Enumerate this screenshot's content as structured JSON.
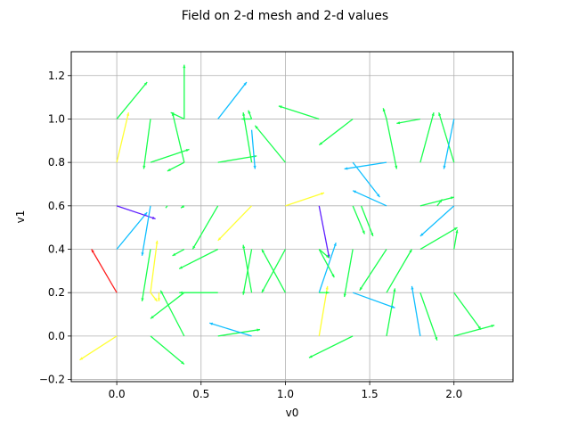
{
  "chart_data": {
    "type": "quiver",
    "title": "Field on 2-d mesh and 2-d values",
    "xlabel": "v0",
    "ylabel": "v1",
    "xlim": [
      -0.27,
      2.35
    ],
    "ylim": [
      -0.21,
      1.31
    ],
    "xticks": [
      "0.0",
      "0.5",
      "1.0",
      "1.5",
      "2.0"
    ],
    "xtick_values": [
      0.0,
      0.5,
      1.0,
      1.5,
      2.0
    ],
    "yticks": [
      "−0.2",
      "0.0",
      "0.2",
      "0.4",
      "0.6",
      "0.8",
      "1.0",
      "1.2"
    ],
    "ytick_values": [
      -0.2,
      0.0,
      0.2,
      0.4,
      0.6,
      0.8,
      1.0,
      1.2
    ],
    "grid": true,
    "arrows": [
      {
        "x": 0.0,
        "y": 0.0,
        "u": -0.22,
        "v": -0.11,
        "color": "#ffff33"
      },
      {
        "x": 0.2,
        "y": 0.0,
        "u": 0.2,
        "v": -0.13,
        "color": "#19ff4e"
      },
      {
        "x": 0.4,
        "y": 0.0,
        "u": -0.14,
        "v": 0.21,
        "color": "#19ff4e"
      },
      {
        "x": 0.6,
        "y": 0.0,
        "u": 0.25,
        "v": 0.03,
        "color": "#19ff4e"
      },
      {
        "x": 0.8,
        "y": 0.0,
        "u": -0.25,
        "v": 0.06,
        "color": "#10bfff"
      },
      {
        "x": 1.0,
        "y": 0.0,
        "u": 0.0,
        "v": 0.0,
        "color": "#19ff4e"
      },
      {
        "x": 1.2,
        "y": 0.0,
        "u": 0.05,
        "v": 0.23,
        "color": "#ffff33"
      },
      {
        "x": 1.4,
        "y": 0.0,
        "u": -0.26,
        "v": -0.1,
        "color": "#19ff4e"
      },
      {
        "x": 1.6,
        "y": 0.0,
        "u": 0.05,
        "v": 0.22,
        "color": "#19ff4e"
      },
      {
        "x": 1.8,
        "y": 0.0,
        "u": -0.05,
        "v": 0.23,
        "color": "#10bfff"
      },
      {
        "x": 2.0,
        "y": 0.0,
        "u": 0.24,
        "v": 0.05,
        "color": "#19ff4e"
      },
      {
        "x": 0.0,
        "y": 0.2,
        "u": -0.15,
        "v": 0.2,
        "color": "#ff2020"
      },
      {
        "x": 0.2,
        "y": 0.2,
        "u": 0.04,
        "v": 0.24,
        "color": "#ffff33"
      },
      {
        "x": 0.4,
        "y": 0.2,
        "u": -0.2,
        "v": -0.12,
        "color": "#19ff4e"
      },
      {
        "x": 0.6,
        "y": 0.2,
        "u": -0.23,
        "v": 0.0,
        "color": "#19ff4e"
      },
      {
        "x": 0.8,
        "y": 0.2,
        "u": -0.05,
        "v": 0.22,
        "color": "#19ff4e"
      },
      {
        "x": 1.0,
        "y": 0.2,
        "u": -0.14,
        "v": 0.2,
        "color": "#19ff4e"
      },
      {
        "x": 1.2,
        "y": 0.2,
        "u": 0.1,
        "v": 0.23,
        "color": "#10bfff"
      },
      {
        "x": 1.4,
        "y": 0.2,
        "u": 0.25,
        "v": -0.07,
        "color": "#10bfff"
      },
      {
        "x": 1.6,
        "y": 0.2,
        "u": 0.15,
        "v": 0.2,
        "color": "#19ff4e"
      },
      {
        "x": 1.8,
        "y": 0.2,
        "u": 0.1,
        "v": -0.22,
        "color": "#19ff4e"
      },
      {
        "x": 2.0,
        "y": 0.2,
        "u": 0.16,
        "v": -0.17,
        "color": "#19ff4e"
      },
      {
        "x": 0.0,
        "y": 0.4,
        "u": 0.18,
        "v": 0.17,
        "color": "#10bfff"
      },
      {
        "x": 0.2,
        "y": 0.4,
        "u": -0.05,
        "v": -0.24,
        "color": "#19ff4e"
      },
      {
        "x": 0.4,
        "y": 0.4,
        "u": -0.07,
        "v": -0.03,
        "color": "#19ff4e"
      },
      {
        "x": 0.6,
        "y": 0.4,
        "u": -0.23,
        "v": -0.09,
        "color": "#19ff4e"
      },
      {
        "x": 0.8,
        "y": 0.4,
        "u": -0.05,
        "v": -0.21,
        "color": "#19ff4e"
      },
      {
        "x": 1.0,
        "y": 0.4,
        "u": -0.14,
        "v": -0.2,
        "color": "#19ff4e"
      },
      {
        "x": 1.2,
        "y": 0.4,
        "u": 0.09,
        "v": -0.13,
        "color": "#19ff4e"
      },
      {
        "x": 1.4,
        "y": 0.4,
        "u": -0.05,
        "v": -0.22,
        "color": "#19ff4e"
      },
      {
        "x": 1.6,
        "y": 0.4,
        "u": -0.16,
        "v": -0.19,
        "color": "#19ff4e"
      },
      {
        "x": 1.8,
        "y": 0.4,
        "u": 0.22,
        "v": 0.1,
        "color": "#19ff4e"
      },
      {
        "x": 2.0,
        "y": 0.4,
        "u": 0.0,
        "v": 0.0,
        "color": "#19ff4e"
      },
      {
        "x": 0.0,
        "y": 0.6,
        "u": 0.23,
        "v": -0.06,
        "color": "#5f1fff"
      },
      {
        "x": 0.2,
        "y": 0.6,
        "u": -0.05,
        "v": -0.23,
        "color": "#10bfff"
      },
      {
        "x": 0.4,
        "y": 0.6,
        "u": 0.0,
        "v": 0.0,
        "color": "#19ff4e"
      },
      {
        "x": 0.6,
        "y": 0.6,
        "u": -0.15,
        "v": -0.2,
        "color": "#19ff4e"
      },
      {
        "x": 0.8,
        "y": 0.6,
        "u": -0.2,
        "v": -0.16,
        "color": "#ffff33"
      },
      {
        "x": 1.0,
        "y": 0.6,
        "u": 0.23,
        "v": 0.06,
        "color": "#ffff33"
      },
      {
        "x": 1.2,
        "y": 0.6,
        "u": 0.06,
        "v": -0.24,
        "color": "#5f1fff"
      },
      {
        "x": 1.4,
        "y": 0.6,
        "u": 0.07,
        "v": -0.13,
        "color": "#19ff4e"
      },
      {
        "x": 1.6,
        "y": 0.6,
        "u": -0.2,
        "v": 0.07,
        "color": "#10bfff"
      },
      {
        "x": 1.8,
        "y": 0.6,
        "u": 0.2,
        "v": 0.04,
        "color": "#19ff4e"
      },
      {
        "x": 2.0,
        "y": 0.6,
        "u": -0.2,
        "v": -0.14,
        "color": "#10bfff"
      },
      {
        "x": 0.0,
        "y": 0.8,
        "u": 0.0,
        "v": 0.0,
        "color": "#19ff4e"
      },
      {
        "x": 0.2,
        "y": 0.8,
        "u": 0.23,
        "v": 0.06,
        "color": "#19ff4e"
      },
      {
        "x": 0.4,
        "y": 0.8,
        "u": -0.07,
        "v": 0.23,
        "color": "#19ff4e"
      },
      {
        "x": 0.6,
        "y": 0.8,
        "u": 0.23,
        "v": 0.03,
        "color": "#19ff4e"
      },
      {
        "x": 0.8,
        "y": 0.8,
        "u": -0.05,
        "v": 0.23,
        "color": "#19ff4e"
      },
      {
        "x": 1.0,
        "y": 0.8,
        "u": -0.18,
        "v": 0.17,
        "color": "#19ff4e"
      },
      {
        "x": 1.2,
        "y": 0.8,
        "u": 0.0,
        "v": 0.0,
        "color": "#19ff4e"
      },
      {
        "x": 1.4,
        "y": 0.8,
        "u": 0.16,
        "v": -0.16,
        "color": "#10bfff"
      },
      {
        "x": 1.6,
        "y": 0.8,
        "u": -0.25,
        "v": -0.03,
        "color": "#10bfff"
      },
      {
        "x": 1.8,
        "y": 0.8,
        "u": 0.0,
        "v": 0.0,
        "color": "#19ff4e"
      },
      {
        "x": 2.0,
        "y": 0.8,
        "u": -0.09,
        "v": 0.23,
        "color": "#19ff4e"
      },
      {
        "x": 0.0,
        "y": 0.8,
        "u": 0.07,
        "v": 0.23,
        "color": "#ffff33"
      },
      {
        "x": 0.2,
        "y": 1.0,
        "u": -0.04,
        "v": -0.23,
        "color": "#19ff4e"
      },
      {
        "x": 0.4,
        "y": 1.0,
        "u": 0.0,
        "v": 0.25,
        "color": "#19ff4e"
      },
      {
        "x": 0.6,
        "y": 1.0,
        "u": 0.17,
        "v": 0.17,
        "color": "#10bfff"
      },
      {
        "x": 0.8,
        "y": 1.0,
        "u": -0.06,
        "v": 0.0,
        "color": "#19ff4e"
      },
      {
        "x": 1.0,
        "y": 1.0,
        "u": 0.0,
        "v": 0.0,
        "color": "#19ff4e"
      },
      {
        "x": 1.2,
        "y": 1.0,
        "u": -0.24,
        "v": 0.06,
        "color": "#19ff4e"
      },
      {
        "x": 1.4,
        "y": 1.0,
        "u": -0.2,
        "v": -0.12,
        "color": "#19ff4e"
      },
      {
        "x": 1.6,
        "y": 1.0,
        "u": -0.02,
        "v": 0.05,
        "color": "#19ff4e"
      },
      {
        "x": 1.8,
        "y": 1.0,
        "u": -0.14,
        "v": -0.02,
        "color": "#19ff4e"
      },
      {
        "x": 2.0,
        "y": 1.0,
        "u": -0.06,
        "v": -0.23,
        "color": "#10bfff"
      },
      {
        "x": 0.0,
        "y": 1.0,
        "u": 0.18,
        "v": 0.17,
        "color": "#19ff4e"
      },
      {
        "x": 0.4,
        "y": 1.0,
        "u": -0.08,
        "v": 0.03,
        "color": "#19ff4e"
      },
      {
        "x": 0.8,
        "y": 0.8,
        "u": 0.0,
        "v": 0.0,
        "color": "#19ff4e"
      },
      {
        "x": 1.0,
        "y": 0.8,
        "u": 0.0,
        "v": 0.0,
        "color": "#19ff4e"
      },
      {
        "x": 0.8,
        "y": 1.0,
        "u": -0.02,
        "v": 0.04,
        "color": "#19ff4e"
      },
      {
        "x": 0.8,
        "y": 0.95,
        "u": 0.02,
        "v": -0.18,
        "color": "#10bfff"
      },
      {
        "x": 1.6,
        "y": 1.0,
        "u": 0.06,
        "v": -0.23,
        "color": "#19ff4e"
      },
      {
        "x": 1.8,
        "y": 0.8,
        "u": 0.08,
        "v": 0.23,
        "color": "#19ff4e"
      },
      {
        "x": 1.2,
        "y": 0.2,
        "u": 0.06,
        "v": 0.0,
        "color": "#19ff4e"
      },
      {
        "x": 0.25,
        "y": 0.2,
        "u": 0.0,
        "v": -0.04,
        "color": "#ffff33"
      },
      {
        "x": 1.2,
        "y": 0.4,
        "u": 0.06,
        "v": -0.04,
        "color": "#19ff4e"
      },
      {
        "x": 1.9,
        "y": 0.6,
        "u": 0.03,
        "v": 0.03,
        "color": "#19ff4e"
      },
      {
        "x": 1.5,
        "y": 0.2,
        "u": 0.0,
        "v": 0.0,
        "color": "#19ff4e"
      },
      {
        "x": 0.4,
        "y": 0.8,
        "u": -0.1,
        "v": -0.04,
        "color": "#19ff4e"
      },
      {
        "x": 1.2,
        "y": 0.6,
        "u": 0.0,
        "v": 0.0,
        "color": "#19ff4e"
      },
      {
        "x": 1.6,
        "y": 0.4,
        "u": 0.0,
        "v": 0.0,
        "color": "#19ff4e"
      },
      {
        "x": 2.0,
        "y": 0.4,
        "u": 0.02,
        "v": 0.09,
        "color": "#19ff4e"
      },
      {
        "x": 1.0,
        "y": 0.6,
        "u": 0.0,
        "v": 0.0,
        "color": "#ffff33"
      },
      {
        "x": 1.45,
        "y": 0.6,
        "u": 0.07,
        "v": -0.14,
        "color": "#19ff4e"
      },
      {
        "x": 0.3,
        "y": 0.6,
        "u": -0.01,
        "v": -0.01,
        "color": "#19ff4e"
      },
      {
        "x": 0.4,
        "y": 0.6,
        "u": -0.02,
        "v": -0.01,
        "color": "#19ff4e"
      },
      {
        "x": 0.2,
        "y": 0.2,
        "u": 0.04,
        "v": -0.04,
        "color": "#ffff33"
      },
      {
        "x": 1.0,
        "y": 1.0,
        "u": 0.0,
        "v": 0.0,
        "color": "#19ff4e"
      },
      {
        "x": 1.22,
        "y": 0.0,
        "u": 0.0,
        "v": 0.0,
        "color": "#19ff4e"
      }
    ]
  }
}
